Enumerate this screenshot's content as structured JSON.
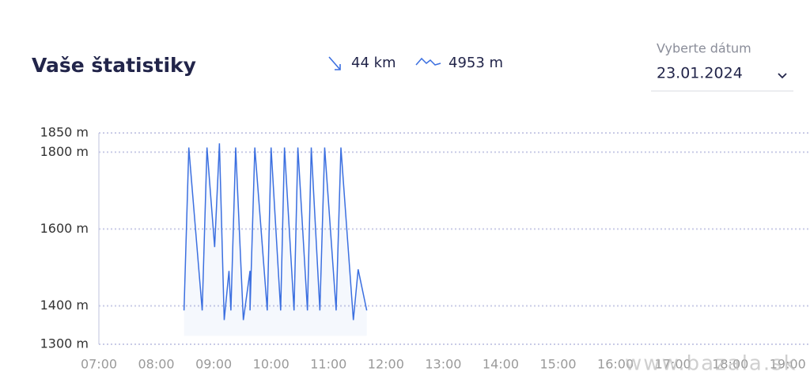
{
  "header": {
    "title": "Vaše štatistiky",
    "distance": "44 km",
    "elevation": "4953 m"
  },
  "date_picker": {
    "label": "Vyberte dátum",
    "value": "23.01.2024"
  },
  "watermark": "www.bazala.sk",
  "chart_data": {
    "type": "line",
    "x": [
      "08:29",
      "08:34",
      "08:48",
      "08:53",
      "09:01",
      "09:06",
      "09:11",
      "09:16",
      "09:18",
      "09:23",
      "09:31",
      "09:38",
      "09:38",
      "09:43",
      "09:56",
      "10:00",
      "10:10",
      "10:14",
      "10:24",
      "10:28",
      "10:38",
      "10:42",
      "10:51",
      "10:56",
      "11:08",
      "11:13",
      "11:26",
      "11:31",
      "11:40"
    ],
    "series": [
      {
        "color": "#3b6fe0",
        "values": [
          1388,
          1812,
          1388,
          1812,
          1553,
          1823,
          1363,
          1491,
          1388,
          1812,
          1363,
          1491,
          1388,
          1812,
          1388,
          1812,
          1388,
          1812,
          1388,
          1812,
          1388,
          1812,
          1388,
          1812,
          1388,
          1812,
          1363,
          1495,
          1388
        ]
      }
    ],
    "xlim": [
      "07:00",
      "19:20"
    ],
    "xticks": [
      "07:00",
      "08:00",
      "09:00",
      "10:00",
      "11:00",
      "12:00",
      "13:00",
      "14:00",
      "15:00",
      "16:00",
      "17:00",
      "18:00",
      "19:00"
    ],
    "ylim": [
      1300,
      1850
    ],
    "yticks": [
      {
        "value": 1300,
        "label": "1300 m"
      },
      {
        "value": 1400,
        "label": "1400 m"
      },
      {
        "value": 1600,
        "label": "1600 m"
      },
      {
        "value": 1800,
        "label": "1800 m"
      },
      {
        "value": 1850,
        "label": "1850 m"
      }
    ],
    "grid": true
  }
}
